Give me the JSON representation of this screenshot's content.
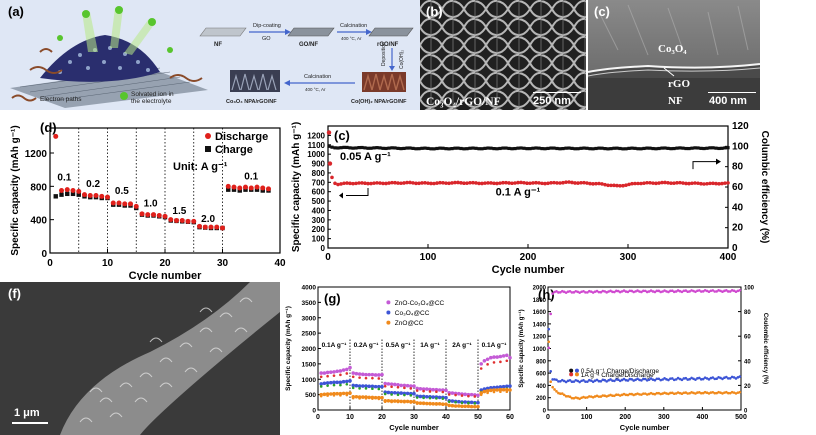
{
  "panels": {
    "a": {
      "label": "(a)",
      "legend_electron": "Electron paths",
      "legend_ion_1": "Solvated ion in",
      "legend_ion_2": "the electrolyte",
      "nf": "NF",
      "step1_top": "Dip-coating",
      "step1_bottom": "GO",
      "gonf": "GO/NF",
      "step2_top": "Calcination",
      "step2_bottom": "400 °C, Ar",
      "rgonf": "rGO/NF",
      "deposition": "Deposition",
      "co_oh": "Co(OH)₂",
      "step3_top": "Calcination",
      "step3_bottom": "400 °C, Ar",
      "product_left": "Co₃O₄ NPA/rGO/NF",
      "product_right": "Co(OH)₂ NPA/rGO/NF"
    },
    "b": {
      "label": "(b)",
      "caption": "Co₃O₄/rGO/NF",
      "scalebar": "250 nm"
    },
    "c_sem": {
      "label": "(c)",
      "co3o4": "Co₃O₄",
      "rgo": "rGO",
      "nf": "NF",
      "scalebar": "400 nm"
    },
    "f": {
      "label": "(f)",
      "scalebar": "1 μm"
    }
  },
  "colors": {
    "discharge": "#e0201b",
    "charge": "#111111",
    "cycle_red": "#d9262b",
    "cycle_black": "#111111",
    "znoco": "#c45bd6",
    "co3o4": "#3d55d6",
    "zno": "#f08a1c",
    "g_red": "#e03030",
    "g_green": "#2aa02a",
    "h_blue": "#3d55d6",
    "h_orange": "#f08a1c",
    "h_magenta": "#d04ad0"
  },
  "chart_data": [
    {
      "id": "d",
      "type": "scatter",
      "panel_label": "(d)",
      "xlabel": "Cycle number",
      "ylabel": "Specific capacity (mAh g⁻¹)",
      "xlim": [
        0,
        40
      ],
      "ylim": [
        0,
        1500
      ],
      "xticks": [
        "0",
        "10",
        "20",
        "30",
        "40"
      ],
      "yticks": [
        "0",
        "400",
        "800",
        "1200"
      ],
      "legend": [
        "Discharge",
        "Charge"
      ],
      "unit_note": "Unit: A g⁻¹",
      "rate_labels": [
        {
          "text": "0.1",
          "x": 2.5,
          "y": 870
        },
        {
          "text": "0.2",
          "x": 7.5,
          "y": 790
        },
        {
          "text": "0.5",
          "x": 12.5,
          "y": 710
        },
        {
          "text": "1.0",
          "x": 17.5,
          "y": 560
        },
        {
          "text": "1.5",
          "x": 22.5,
          "y": 470
        },
        {
          "text": "2.0",
          "x": 27.5,
          "y": 370
        },
        {
          "text": "0.1",
          "x": 35,
          "y": 880
        }
      ],
      "dividers": [
        5,
        10,
        15,
        20,
        25,
        30
      ],
      "series": [
        {
          "name": "Discharge",
          "x": [
            1,
            2,
            3,
            4,
            5,
            6,
            7,
            8,
            9,
            10,
            11,
            12,
            13,
            14,
            15,
            16,
            17,
            18,
            19,
            20,
            21,
            22,
            23,
            24,
            25,
            26,
            27,
            28,
            29,
            30,
            31,
            32,
            33,
            34,
            35,
            36,
            37,
            38
          ],
          "values": [
            1400,
            750,
            760,
            750,
            740,
            700,
            690,
            690,
            680,
            670,
            600,
            600,
            590,
            590,
            560,
            470,
            460,
            460,
            450,
            440,
            400,
            390,
            390,
            380,
            380,
            320,
            310,
            310,
            310,
            300,
            800,
            790,
            780,
            790,
            780,
            790,
            780,
            770
          ]
        },
        {
          "name": "Charge",
          "x": [
            1,
            2,
            3,
            4,
            5,
            6,
            7,
            8,
            9,
            10,
            11,
            12,
            13,
            14,
            15,
            16,
            17,
            18,
            19,
            20,
            21,
            22,
            23,
            24,
            25,
            26,
            27,
            28,
            29,
            30,
            31,
            32,
            33,
            34,
            35,
            36,
            37,
            38
          ],
          "values": [
            680,
            700,
            710,
            710,
            700,
            680,
            670,
            670,
            660,
            660,
            580,
            580,
            570,
            570,
            540,
            460,
            450,
            450,
            440,
            430,
            390,
            385,
            380,
            375,
            370,
            310,
            305,
            300,
            300,
            300,
            760,
            760,
            750,
            760,
            760,
            760,
            750,
            750
          ]
        }
      ]
    },
    {
      "id": "c",
      "type": "scatter",
      "panel_label": "(c)",
      "xlabel": "Cycle number",
      "ylabel": "Specific capacity (mAh g⁻¹)",
      "ylabel_right": "Columbic efficiency (%)",
      "xlim": [
        0,
        400
      ],
      "ylim": [
        0,
        1300
      ],
      "ylim_right": [
        0,
        120
      ],
      "xticks": [
        "0",
        "100",
        "200",
        "300",
        "400"
      ],
      "yticks": [
        "0",
        "100",
        "200",
        "300",
        "400",
        "500",
        "600",
        "700",
        "800",
        "900",
        "1000",
        "1100",
        "1200"
      ],
      "yticks_right": [
        "0",
        "20",
        "40",
        "60",
        "80",
        "100",
        "120"
      ],
      "annotations": [
        "0.05 A g⁻¹",
        "0.1 A g⁻¹"
      ],
      "series": [
        {
          "name": "capacity",
          "note": "approx 680 mAh/g, slight undulation",
          "points": [
            [
              1,
              1230
            ],
            [
              2,
              900
            ],
            [
              3,
              800
            ],
            [
              5,
              700
            ],
            [
              10,
              680
            ],
            [
              20,
              690
            ],
            [
              50,
              690
            ],
            [
              80,
              695
            ],
            [
              100,
              690
            ],
            [
              130,
              695
            ],
            [
              160,
              690
            ],
            [
              190,
              695
            ],
            [
              220,
              690
            ],
            [
              240,
              700
            ],
            [
              270,
              685
            ],
            [
              290,
              660
            ],
            [
              310,
              690
            ],
            [
              340,
              695
            ],
            [
              360,
              690
            ],
            [
              380,
              685
            ],
            [
              400,
              690
            ]
          ]
        },
        {
          "name": "efficiency",
          "points": [
            [
              1,
              1080
            ],
            [
              5,
              1070
            ],
            [
              100,
              1060
            ],
            [
              200,
              1062
            ],
            [
              300,
              1060
            ],
            [
              400,
              1065
            ]
          ]
        }
      ]
    },
    {
      "id": "g",
      "type": "line",
      "panel_label": "(g)",
      "xlabel": "Cycle number",
      "ylabel": "Specific capacity (mAh g⁻¹)",
      "xlim": [
        0,
        60
      ],
      "ylim": [
        0,
        4000
      ],
      "xticks": [
        "0",
        "10",
        "20",
        "30",
        "40",
        "50",
        "60"
      ],
      "yticks": [
        "0",
        "500",
        "1000",
        "1500",
        "2000",
        "2500",
        "3000",
        "3500",
        "4000"
      ],
      "legend": [
        "ZnO-Co₃O₄@CC",
        "Co₃O₄@CC",
        "ZnO@CC"
      ],
      "rate_labels": [
        "0.1A g⁻¹",
        "0.2A g⁻¹",
        "0.5A g⁻¹",
        "1A g⁻¹",
        "2A g⁻¹",
        "0.1A g⁻¹"
      ],
      "dividers": [
        10,
        20,
        30,
        40,
        50
      ],
      "series": [
        {
          "name": "ZnO-Co₃O₄@CC",
          "values": [
            1200,
            1200,
            1220,
            1230,
            1240,
            1260,
            1270,
            1300,
            1320,
            1380,
            1200,
            1180,
            1170,
            1160,
            1150,
            1150,
            1150,
            1140,
            1140,
            1150,
            860,
            850,
            840,
            830,
            820,
            800,
            800,
            790,
            780,
            780,
            700,
            690,
            680,
            680,
            670,
            660,
            660,
            650,
            650,
            640,
            560,
            550,
            540,
            530,
            520,
            510,
            500,
            500,
            490,
            480,
            1500,
            1600,
            1650,
            1700,
            1720,
            1720,
            1740,
            1760,
            1780,
            1700
          ]
        },
        {
          "name": "Co₃O₄@CC",
          "values": [
            850,
            870,
            880,
            890,
            900,
            900,
            900,
            920,
            930,
            950,
            800,
            790,
            780,
            780,
            780,
            770,
            770,
            760,
            760,
            760,
            580,
            570,
            560,
            560,
            550,
            550,
            540,
            540,
            530,
            530,
            450,
            440,
            440,
            430,
            430,
            420,
            420,
            410,
            410,
            400,
            300,
            290,
            280,
            270,
            260,
            260,
            250,
            250,
            240,
            240,
            650,
            680,
            700,
            720,
            730,
            740,
            750,
            760,
            770,
            780
          ]
        },
        {
          "name": "ZnO@CC",
          "values": [
            500,
            510,
            520,
            520,
            530,
            530,
            530,
            540,
            540,
            550,
            430,
            430,
            420,
            420,
            420,
            410,
            410,
            400,
            400,
            400,
            300,
            300,
            290,
            290,
            290,
            280,
            280,
            280,
            270,
            270,
            230,
            220,
            220,
            210,
            210,
            200,
            200,
            200,
            190,
            190,
            150,
            140,
            130,
            130,
            120,
            120,
            120,
            110,
            110,
            110,
            550,
            600,
            620,
            640,
            650,
            650,
            660,
            660,
            660,
            650
          ]
        }
      ]
    },
    {
      "id": "h",
      "type": "scatter",
      "panel_label": "(h)",
      "xlabel": "Cycle number",
      "ylabel": "Specific capacity (mAh g⁻¹)",
      "ylabel_right": "Coulombic efficiency (%)",
      "xlim": [
        0,
        500
      ],
      "ylim": [
        0,
        2000
      ],
      "ylim_right": [
        0,
        100
      ],
      "xticks": [
        "0",
        "100",
        "200",
        "300",
        "400",
        "500"
      ],
      "yticks": [
        "0",
        "200",
        "400",
        "600",
        "800",
        "1000",
        "1200",
        "1400",
        "1600",
        "1800",
        "2000"
      ],
      "yticks_right": [
        "0",
        "20",
        "40",
        "60",
        "80",
        "100"
      ],
      "legend": [
        "0.5A g⁻¹ Charge/Discharge",
        "1A g⁻¹ Charge/Discharge"
      ],
      "series": [
        {
          "name": "0.5A g⁻¹ Charge/Discharge",
          "points": [
            [
              2,
              1300
            ],
            [
              5,
              700
            ],
            [
              10,
              520
            ],
            [
              20,
              480
            ],
            [
              40,
              470
            ],
            [
              60,
              470
            ],
            [
              80,
              470
            ],
            [
              100,
              470
            ],
            [
              150,
              480
            ],
            [
              200,
              490
            ],
            [
              250,
              495
            ],
            [
              300,
              500
            ],
            [
              350,
              505
            ],
            [
              400,
              510
            ],
            [
              450,
              520
            ],
            [
              500,
              530
            ]
          ]
        },
        {
          "name": "1A g⁻¹ Charge/Discharge",
          "points": [
            [
              2,
              1100
            ],
            [
              5,
              500
            ],
            [
              10,
              400
            ],
            [
              20,
              300
            ],
            [
              40,
              250
            ],
            [
              60,
              200
            ],
            [
              80,
              190
            ],
            [
              100,
              210
            ],
            [
              150,
              230
            ],
            [
              200,
              250
            ],
            [
              250,
              260
            ],
            [
              300,
              270
            ],
            [
              350,
              275
            ],
            [
              400,
              280
            ],
            [
              450,
              280
            ],
            [
              500,
              280
            ]
          ]
        },
        {
          "name": "efficiency",
          "points": [
            [
              2,
              1000
            ],
            [
              10,
              1900
            ],
            [
              20,
              1920
            ],
            [
              100,
              1920
            ],
            [
              200,
              1930
            ],
            [
              300,
              1930
            ],
            [
              400,
              1935
            ],
            [
              500,
              1935
            ]
          ]
        }
      ]
    }
  ]
}
